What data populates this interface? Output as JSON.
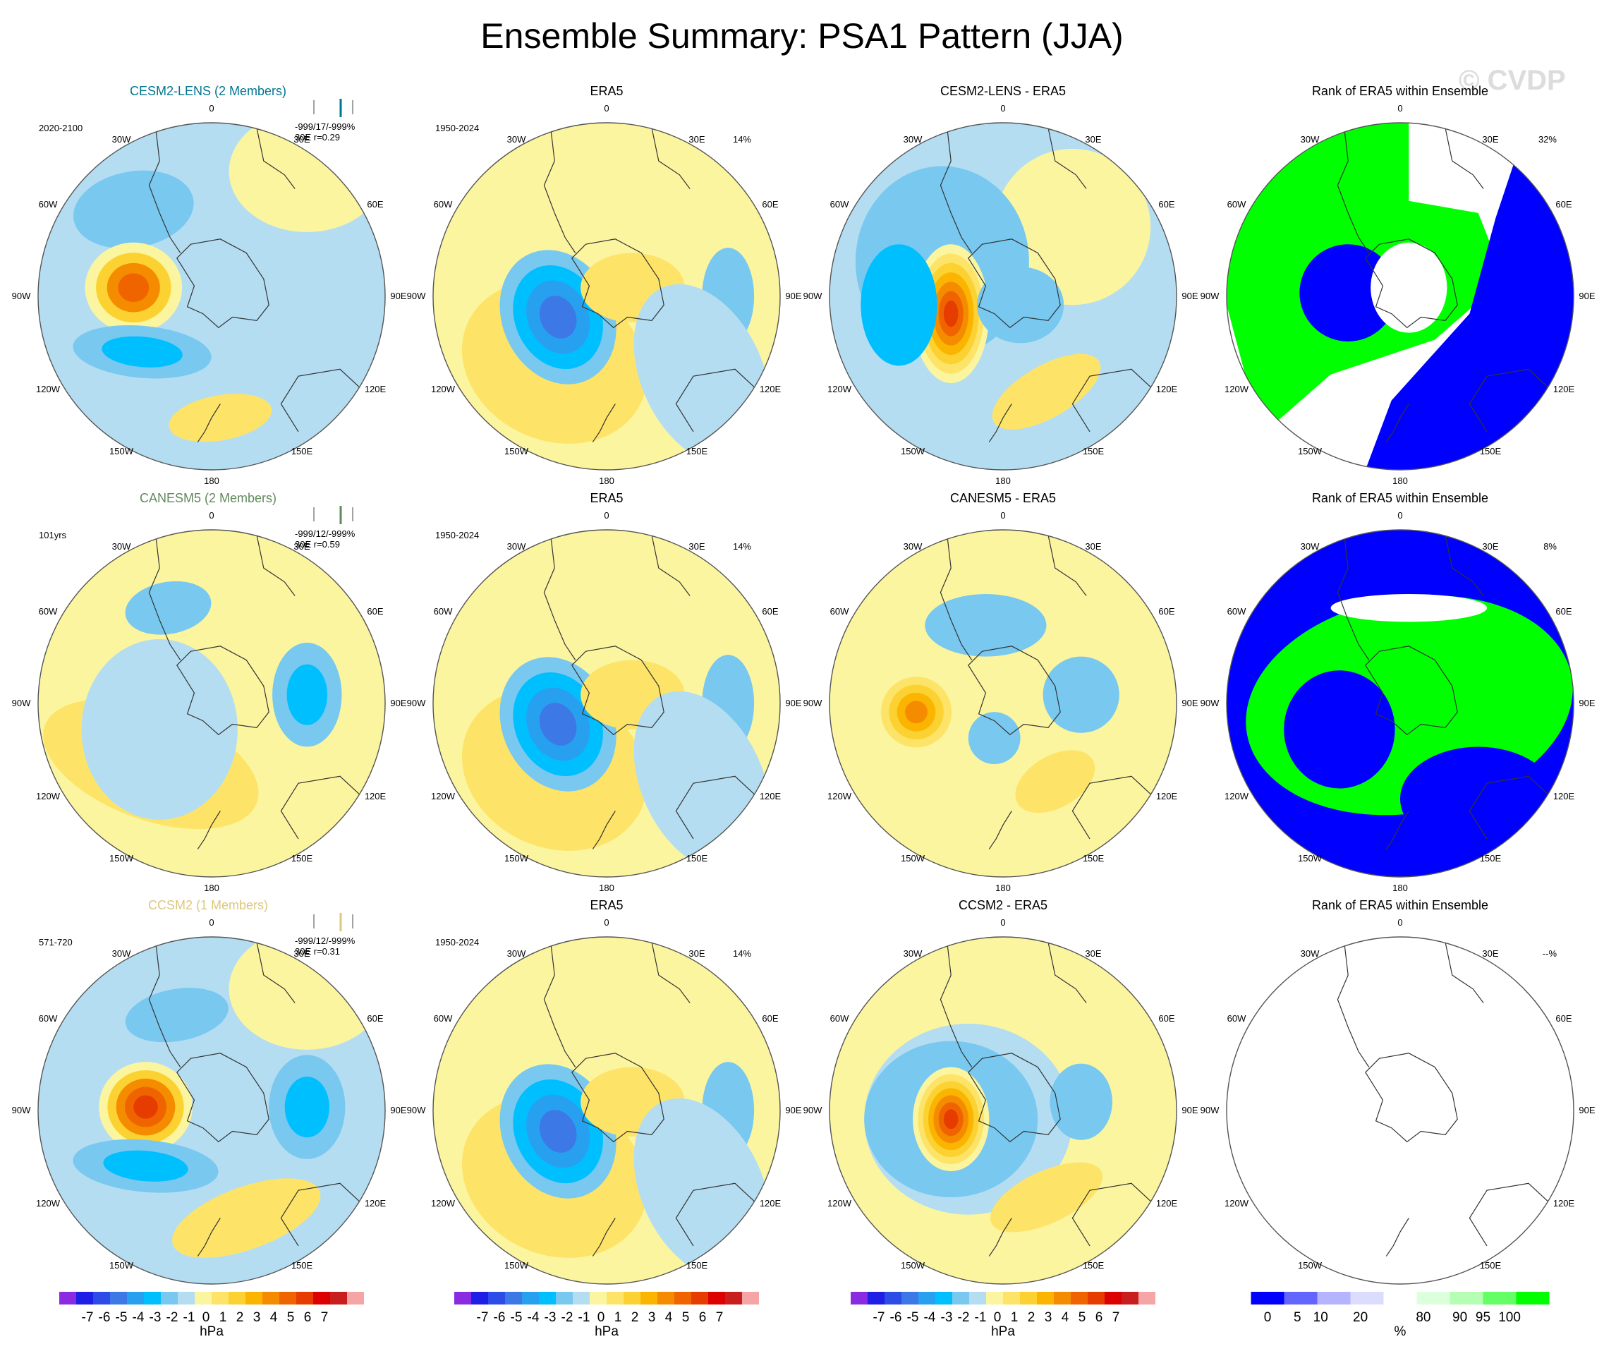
{
  "title": "Ensemble Summary: PSA1 Pattern (JJA)",
  "watermark": "© CVDP",
  "colors": {
    "diff_scale": [
      "#8a2be2",
      "#1e1ee6",
      "#2d4be6",
      "#3c78e6",
      "#28a0f0",
      "#00bfff",
      "#78c8f0",
      "#b4ddf2",
      "#fbf5a0",
      "#fde468",
      "#fbd232",
      "#fbb400",
      "#f58c00",
      "#f06400",
      "#e63c00",
      "#dc0000",
      "#c81e1e",
      "#f5a5a5"
    ],
    "rank_scale": [
      "#0000ff",
      "#6464ff",
      "#b4b4ff",
      "#dcdcff",
      "#ffffff",
      "#dcffdc",
      "#b4ffb4",
      "#64ff64",
      "#00ff00"
    ],
    "ensemble_label": [
      "#00758f",
      "#5e8a5c",
      "#dcc77e"
    ],
    "coast": "#333333"
  },
  "lon_labels": [
    "0",
    "30E",
    "60E",
    "90E",
    "120E",
    "150E",
    "180",
    "150W",
    "120W",
    "90W",
    "60W",
    "30W"
  ],
  "chart_data": {
    "type": "polar-contour-maps",
    "rows": [
      {
        "model": {
          "title": "CESM2-LENS (2 Members)",
          "corner_left": "2020-2100",
          "stats_line1": "-999/17/-999%",
          "stats_line2": "30E r=0.29"
        },
        "obs": {
          "title": "ERA5",
          "corner_left": "1950-2024",
          "corner_right": "14%"
        },
        "diff": {
          "title": "CESM2-LENS - ERA5"
        },
        "rank": {
          "title": "Rank of ERA5 within Ensemble",
          "corner_right": "32%"
        }
      },
      {
        "model": {
          "title": "CANESM5 (2 Members)",
          "corner_left": "101yrs",
          "stats_line1": "-999/12/-999%",
          "stats_line2": "30E r=0.59"
        },
        "obs": {
          "title": "ERA5",
          "corner_left": "1950-2024",
          "corner_right": "14%"
        },
        "diff": {
          "title": "CANESM5 - ERA5"
        },
        "rank": {
          "title": "Rank of ERA5 within Ensemble",
          "corner_right": "8%"
        }
      },
      {
        "model": {
          "title": "CCSM2 (1 Members)",
          "corner_left": "571-720",
          "stats_line1": "-999/12/-999%",
          "stats_line2": "30E r=0.31"
        },
        "obs": {
          "title": "ERA5",
          "corner_left": "1950-2024",
          "corner_right": "14%"
        },
        "diff": {
          "title": "CCSM2 - ERA5"
        },
        "rank": {
          "title": "Rank of ERA5 within Ensemble",
          "corner_right": "--%"
        }
      }
    ],
    "colorbars": [
      {
        "ticks": [
          "-7",
          "-6",
          "-5",
          "-4",
          "-3",
          "-2",
          "-1",
          "0",
          "1",
          "2",
          "3",
          "4",
          "5",
          "6",
          "7"
        ],
        "unit": "hPa"
      },
      {
        "ticks": [
          "-7",
          "-6",
          "-5",
          "-4",
          "-3",
          "-2",
          "-1",
          "0",
          "1",
          "2",
          "3",
          "4",
          "5",
          "6",
          "7"
        ],
        "unit": "hPa"
      },
      {
        "ticks": [
          "-7",
          "-6",
          "-5",
          "-4",
          "-3",
          "-2",
          "-1",
          "0",
          "1",
          "2",
          "3",
          "4",
          "5",
          "6",
          "7"
        ],
        "unit": "hPa"
      },
      {
        "ticks": [
          "0",
          "5",
          "10",
          "20",
          "80",
          "90",
          "95",
          "100"
        ],
        "unit": "%"
      }
    ]
  }
}
